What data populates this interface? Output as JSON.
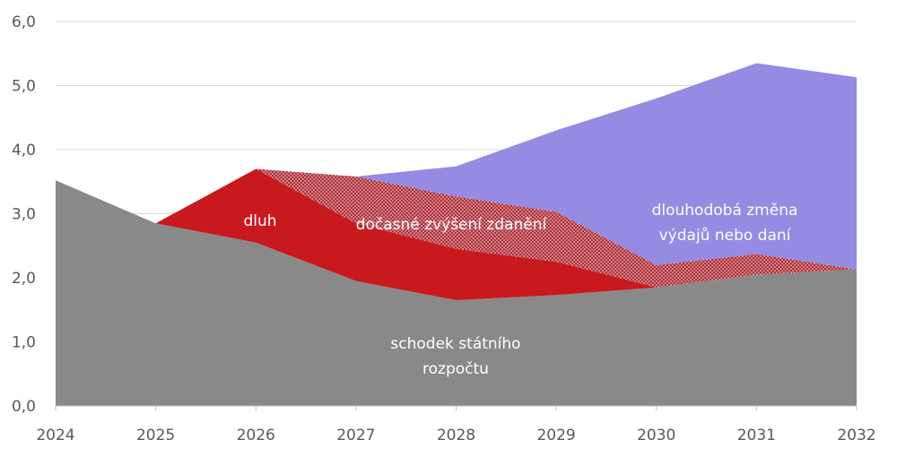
{
  "chart_data": {
    "type": "area",
    "stacked": true,
    "x": [
      2024,
      2025,
      2026,
      2027,
      2028,
      2029,
      2030,
      2031,
      2032
    ],
    "x_tick_labels": [
      "2024",
      "2025",
      "2026",
      "2027",
      "2028",
      "2029",
      "2030",
      "2031",
      "2032"
    ],
    "y_tick_labels": [
      "0,0",
      "1,0",
      "2,0",
      "3,0",
      "4,0",
      "5,0",
      "6,0"
    ],
    "ylim": [
      0,
      6
    ],
    "grid": true,
    "series": [
      {
        "name": "schodek státního rozpočtu",
        "values": [
          3.52,
          2.85,
          2.55,
          1.95,
          1.65,
          1.73,
          1.85,
          2.05,
          2.13
        ],
        "color": "#898989"
      },
      {
        "name": "dluh",
        "values": [
          0,
          0,
          1.15,
          0.9,
          0.8,
          0.52,
          0,
          0,
          0
        ],
        "color": "#c8191f"
      },
      {
        "name": "dočasné zvýšení zdanění",
        "values": [
          0,
          0,
          0,
          0.73,
          0.82,
          0.78,
          0.35,
          0.32,
          0
        ],
        "color": "#b0323c",
        "pattern": "crosshatch"
      },
      {
        "name": "dlouhodobá změna výdajů nebo daní",
        "values": [
          0,
          0,
          0,
          0,
          0.47,
          1.27,
          2.6,
          2.98,
          3.0
        ],
        "color": "#958be2"
      }
    ],
    "annotations": {
      "dluh": [
        "dluh"
      ],
      "docasne": [
        "dočasné zvýšení zdanění"
      ],
      "dlouhodoba": [
        "dlouhodobá změna",
        "výdajů nebo daní"
      ],
      "schodek": [
        "schodek státního",
        "rozpočtu"
      ]
    }
  }
}
